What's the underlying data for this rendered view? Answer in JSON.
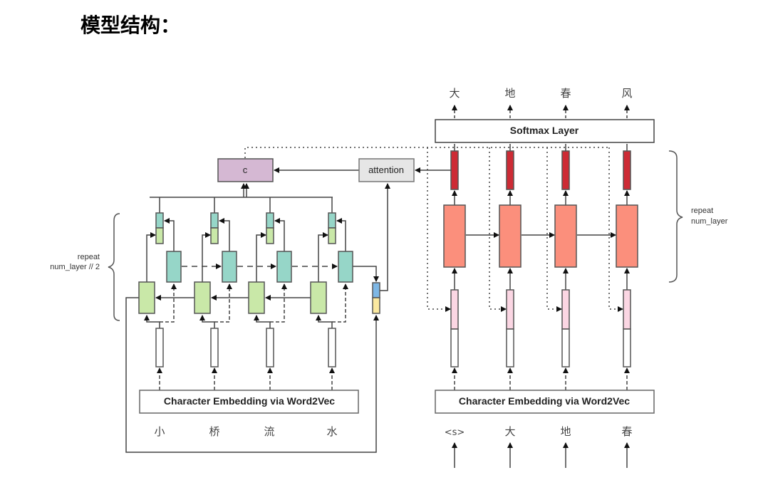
{
  "title": "模型结构：",
  "encoder": {
    "context_label": "c",
    "attention_label": "attention",
    "embedding_label": "Character Embedding via Word2Vec",
    "repeat_label_1": "repeat",
    "repeat_label_2": "num_layer // 2",
    "inputs": [
      "小",
      "桥",
      "流",
      "水"
    ]
  },
  "decoder": {
    "softmax_label": "Softmax Layer",
    "embedding_label": "Character Embedding via Word2Vec",
    "repeat_label_1": "repeat",
    "repeat_label_2": "num_layer",
    "inputs": [
      "<s>",
      "大",
      "地",
      "春"
    ],
    "outputs": [
      "大",
      "地",
      "春",
      "风"
    ]
  },
  "colors": {
    "context": "#d5b8d3",
    "attention": "#e6e6e6",
    "forward_rnn": "#c9e8a8",
    "backward_rnn": "#96d6c8",
    "decoder_rnn": "#fb8f7c",
    "decoder_out": "#cd2b35",
    "decoder_in": "#fbd6e3",
    "final_fw": "#7eb7e5",
    "final_bw": "#fbe9a0"
  }
}
